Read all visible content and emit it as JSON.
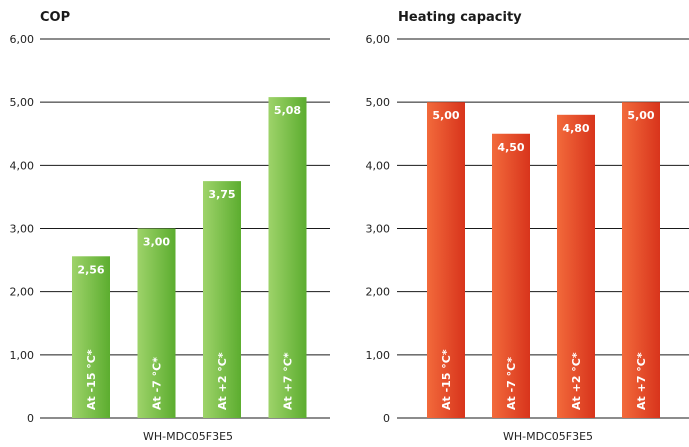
{
  "chart_data": [
    {
      "type": "bar",
      "title": "COP",
      "xlabel": "WH-MDC05F3E5",
      "ylabel": "",
      "ylim": [
        0,
        6
      ],
      "yticks": [
        "0",
        "1,00",
        "2,00",
        "3,00",
        "4,00",
        "5,00",
        "6,00"
      ],
      "categories": [
        "At -15 °C*",
        "At -7 °C*",
        "At +2 °C*",
        "At +7 °C*"
      ],
      "values": [
        2.56,
        3.0,
        3.75,
        5.08
      ],
      "value_labels": [
        "2,56",
        "3,00",
        "3,75",
        "5,08"
      ],
      "grid": true,
      "colors": {
        "bar_light": "#9ed36a",
        "bar_dark": "#5cad2f"
      }
    },
    {
      "type": "bar",
      "title": "Heating capacity",
      "xlabel": "WH-MDC05F3E5",
      "ylabel": "",
      "ylim": [
        0,
        6
      ],
      "yticks": [
        "0",
        "1,00",
        "2,00",
        "3,00",
        "4,00",
        "5,00",
        "6,00"
      ],
      "categories": [
        "At -15 °C*",
        "At -7 °C*",
        "At +2 °C*",
        "At +7 °C*"
      ],
      "values": [
        5.0,
        4.5,
        4.8,
        5.0
      ],
      "value_labels": [
        "5,00",
        "4,50",
        "4,80",
        "5,00"
      ],
      "grid": true,
      "colors": {
        "bar_light": "#f26a3b",
        "bar_dark": "#d8341c"
      }
    }
  ]
}
